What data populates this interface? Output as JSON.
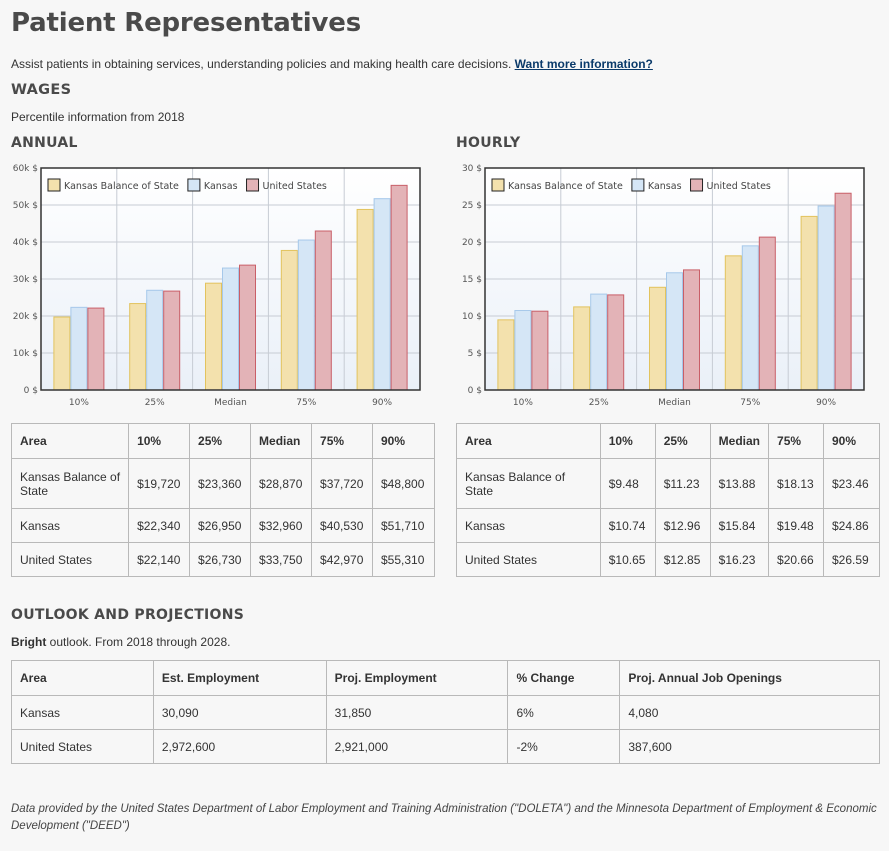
{
  "title": "Patient Representatives",
  "intro": {
    "text": "Assist patients in obtaining services, understanding policies and making health care decisions.",
    "link": "Want more information?"
  },
  "wages": {
    "heading": "WAGES",
    "note": "Percentile information from 2018",
    "annual_heading": "ANNUAL",
    "hourly_heading": "HOURLY"
  },
  "chart_data": [
    {
      "type": "bar",
      "categories": [
        "10%",
        "25%",
        "Median",
        "75%",
        "90%"
      ],
      "ylim": [
        0,
        60000
      ],
      "yticks": [
        "0 $",
        "10k $",
        "20k $",
        "30k $",
        "40k $",
        "50k $",
        "60k $"
      ],
      "series": [
        {
          "name": "Kansas Balance of State",
          "values": [
            19720,
            23360,
            28870,
            37720,
            48800
          ],
          "fill": "#f3e1ad",
          "stroke": "#e2c35e"
        },
        {
          "name": "Kansas",
          "values": [
            22340,
            26950,
            32960,
            40530,
            51710
          ],
          "fill": "#d5e6f6",
          "stroke": "#a6c8ea"
        },
        {
          "name": "United States",
          "values": [
            22140,
            26730,
            33750,
            42970,
            55310
          ],
          "fill": "#e3b3b7",
          "stroke": "#c95f68"
        }
      ],
      "legend": "top-left",
      "grid": true
    },
    {
      "type": "bar",
      "categories": [
        "10%",
        "25%",
        "Median",
        "75%",
        "90%"
      ],
      "ylim": [
        0,
        30
      ],
      "yticks": [
        "0 $",
        "5 $",
        "10 $",
        "15 $",
        "20 $",
        "25 $",
        "30 $"
      ],
      "series": [
        {
          "name": "Kansas Balance of State",
          "values": [
            9.48,
            11.23,
            13.88,
            18.13,
            23.46
          ],
          "fill": "#f3e1ad",
          "stroke": "#e2c35e"
        },
        {
          "name": "Kansas",
          "values": [
            10.74,
            12.96,
            15.84,
            19.48,
            24.86
          ],
          "fill": "#d5e6f6",
          "stroke": "#a6c8ea"
        },
        {
          "name": "United States",
          "values": [
            10.65,
            12.85,
            16.23,
            20.66,
            26.59
          ],
          "fill": "#e3b3b7",
          "stroke": "#c95f68"
        }
      ],
      "legend": "top-left",
      "grid": true
    }
  ],
  "annual_table": {
    "headers": [
      "Area",
      "10%",
      "25%",
      "Median",
      "75%",
      "90%"
    ],
    "rows": [
      [
        "Kansas Balance of State",
        "$19,720",
        "$23,360",
        "$28,870",
        "$37,720",
        "$48,800"
      ],
      [
        "Kansas",
        "$22,340",
        "$26,950",
        "$32,960",
        "$40,530",
        "$51,710"
      ],
      [
        "United States",
        "$22,140",
        "$26,730",
        "$33,750",
        "$42,970",
        "$55,310"
      ]
    ]
  },
  "hourly_table": {
    "headers": [
      "Area",
      "10%",
      "25%",
      "Median",
      "75%",
      "90%"
    ],
    "rows": [
      [
        "Kansas Balance of State",
        "$9.48",
        "$11.23",
        "$13.88",
        "$18.13",
        "$23.46"
      ],
      [
        "Kansas",
        "$10.74",
        "$12.96",
        "$15.84",
        "$19.48",
        "$24.86"
      ],
      [
        "United States",
        "$10.65",
        "$12.85",
        "$16.23",
        "$20.66",
        "$26.59"
      ]
    ]
  },
  "outlook": {
    "heading": "OUTLOOK AND PROJECTIONS",
    "bright": "Bright",
    "rest": "outlook. From 2018 through 2028.",
    "headers": [
      "Area",
      "Est. Employment",
      "Proj. Employment",
      "% Change",
      "Proj. Annual Job Openings"
    ],
    "rows": [
      [
        "Kansas",
        "30,090",
        "31,850",
        "6%",
        "4,080"
      ],
      [
        "United States",
        "2,972,600",
        "2,921,000",
        "-2%",
        "387,600"
      ]
    ]
  },
  "footer": "Data provided by the United States Department of Labor Employment and Training Administration (\"DOLETA\") and the Minnesota Department of Employment & Economic Development (\"DEED\")"
}
